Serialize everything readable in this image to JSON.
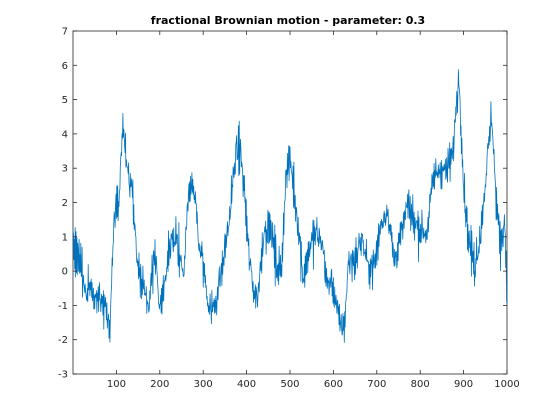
{
  "chart_data": {
    "type": "line",
    "title": "fractional Brownian motion - parameter: 0.3",
    "xlabel": "",
    "ylabel": "",
    "xlim": [
      0,
      1000
    ],
    "ylim": [
      -3,
      7
    ],
    "xticks": [
      100,
      200,
      300,
      400,
      500,
      600,
      700,
      800,
      900,
      1000
    ],
    "yticks": [
      -3,
      -2,
      -1,
      0,
      1,
      2,
      3,
      4,
      5,
      6,
      7
    ],
    "grid": false,
    "line_color": "#0072BD",
    "axes_color": "#262626",
    "noise_amplitude": 0.7,
    "series": [
      {
        "x": [
          1,
          15,
          30,
          45,
          60,
          75,
          85,
          95,
          100,
          105,
          115,
          125,
          135,
          145,
          155,
          165,
          175,
          180,
          190,
          200,
          210,
          225,
          240,
          255,
          265,
          275,
          285,
          290,
          300,
          310,
          320,
          330,
          345,
          360,
          375,
          385,
          395,
          405,
          415,
          425,
          440,
          455,
          470,
          480,
          490,
          500,
          510,
          520,
          530,
          545,
          560,
          575,
          585,
          595,
          605,
          615,
          625,
          635,
          650,
          665,
          680,
          695,
          710,
          725,
          740,
          755,
          770,
          785,
          800,
          815,
          830,
          845,
          860,
          875,
          885,
          890,
          900,
          910,
          925,
          940,
          955,
          965,
          975,
          985,
          995,
          1000
        ],
        "y": [
          0.8,
          0.3,
          -0.6,
          -0.5,
          -0.9,
          -1.0,
          -1.6,
          1.5,
          2.0,
          1.6,
          4.4,
          3.0,
          2.5,
          0.8,
          -0.3,
          -0.5,
          -1.2,
          0.0,
          0.5,
          -1.3,
          -0.5,
          0.9,
          1.0,
          -0.2,
          2.0,
          2.8,
          1.6,
          0.8,
          0.2,
          -0.8,
          -1.2,
          -0.8,
          0.2,
          1.5,
          3.4,
          3.6,
          2.3,
          0.5,
          -0.5,
          -0.8,
          1.2,
          1.3,
          0.1,
          0.0,
          2.7,
          3.3,
          2.3,
          1.2,
          -0.2,
          0.7,
          1.1,
          0.8,
          -0.4,
          -0.3,
          -0.8,
          -1.6,
          -1.6,
          0.3,
          0.3,
          1.0,
          0.1,
          0.2,
          1.4,
          1.8,
          0.3,
          1.0,
          1.9,
          1.5,
          1.2,
          1.1,
          2.7,
          3.0,
          2.9,
          3.4,
          5.2,
          5.6,
          2.5,
          1.1,
          0.1,
          1.2,
          3.3,
          4.6,
          2.0,
          0.8,
          1.5,
          -0.9
        ]
      }
    ]
  }
}
